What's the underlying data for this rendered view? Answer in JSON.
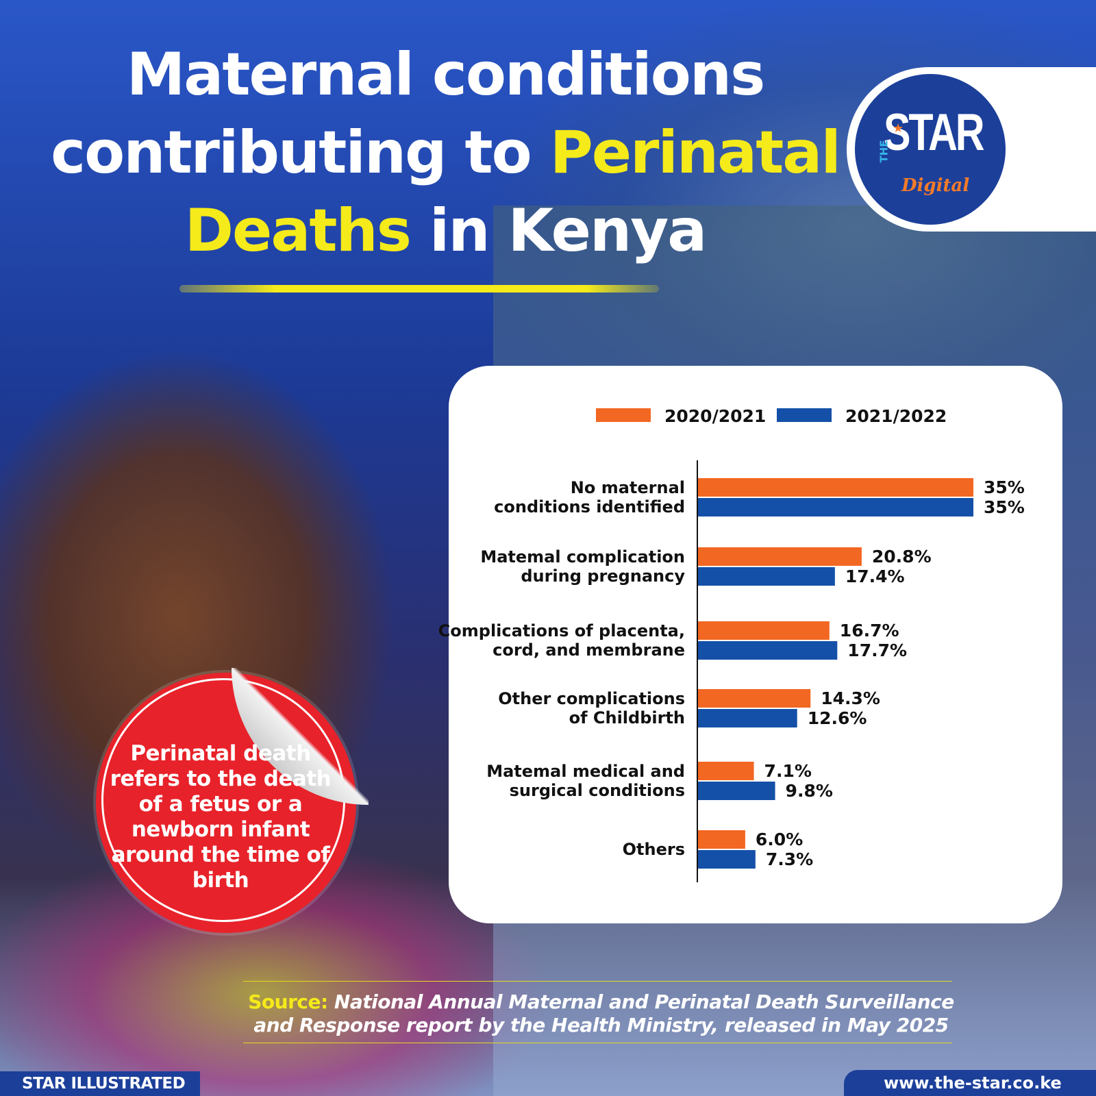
{
  "title": {
    "part1": "Maternal conditions contributing to ",
    "highlight1": "Perinatal Deaths",
    "part2": " in Kenya"
  },
  "logo": {
    "prefix": "THE",
    "name": "STAR",
    "suffix": "Digital"
  },
  "callout": "Perinatal death refers to the death of a fetus or a newborn infant around the time of birth",
  "source": {
    "label": "Source:",
    "text": "National Annual Maternal and Perinatal Death Surveillance and Response report by the Health Ministry, released in May 2025"
  },
  "footer": {
    "left": "STAR ILLUSTRATED",
    "right": "www.the-star.co.ke"
  },
  "colors": {
    "series1": "#f26722",
    "series2": "#1450a8",
    "accent": "#f5ea1a",
    "callout": "#e8222a"
  },
  "chart_data": {
    "type": "bar",
    "orientation": "horizontal",
    "legend_position": "top",
    "grid": false,
    "xlim": [
      0,
      35
    ],
    "categories": [
      [
        "No maternal",
        "conditions identified"
      ],
      [
        "Matemal complication",
        "during pregnancy"
      ],
      [
        "Complications of placenta,",
        "cord, and membrane"
      ],
      [
        "Other complications",
        "of Childbirth"
      ],
      [
        "Matemal medical and",
        "surgical conditions"
      ],
      [
        "Others"
      ]
    ],
    "series": [
      {
        "name": "2020/2021",
        "values": [
          35,
          20.8,
          16.7,
          14.3,
          7.1,
          6.0
        ],
        "labels": [
          "35%",
          "20.8%",
          "16.7%",
          "14.3%",
          "7.1%",
          "6.0%"
        ]
      },
      {
        "name": "2021/2022",
        "values": [
          35,
          17.4,
          17.7,
          12.6,
          9.8,
          7.3
        ],
        "labels": [
          "35%",
          "17.4%",
          "17.7%",
          "12.6%",
          "9.8%",
          "7.3%"
        ]
      }
    ]
  }
}
